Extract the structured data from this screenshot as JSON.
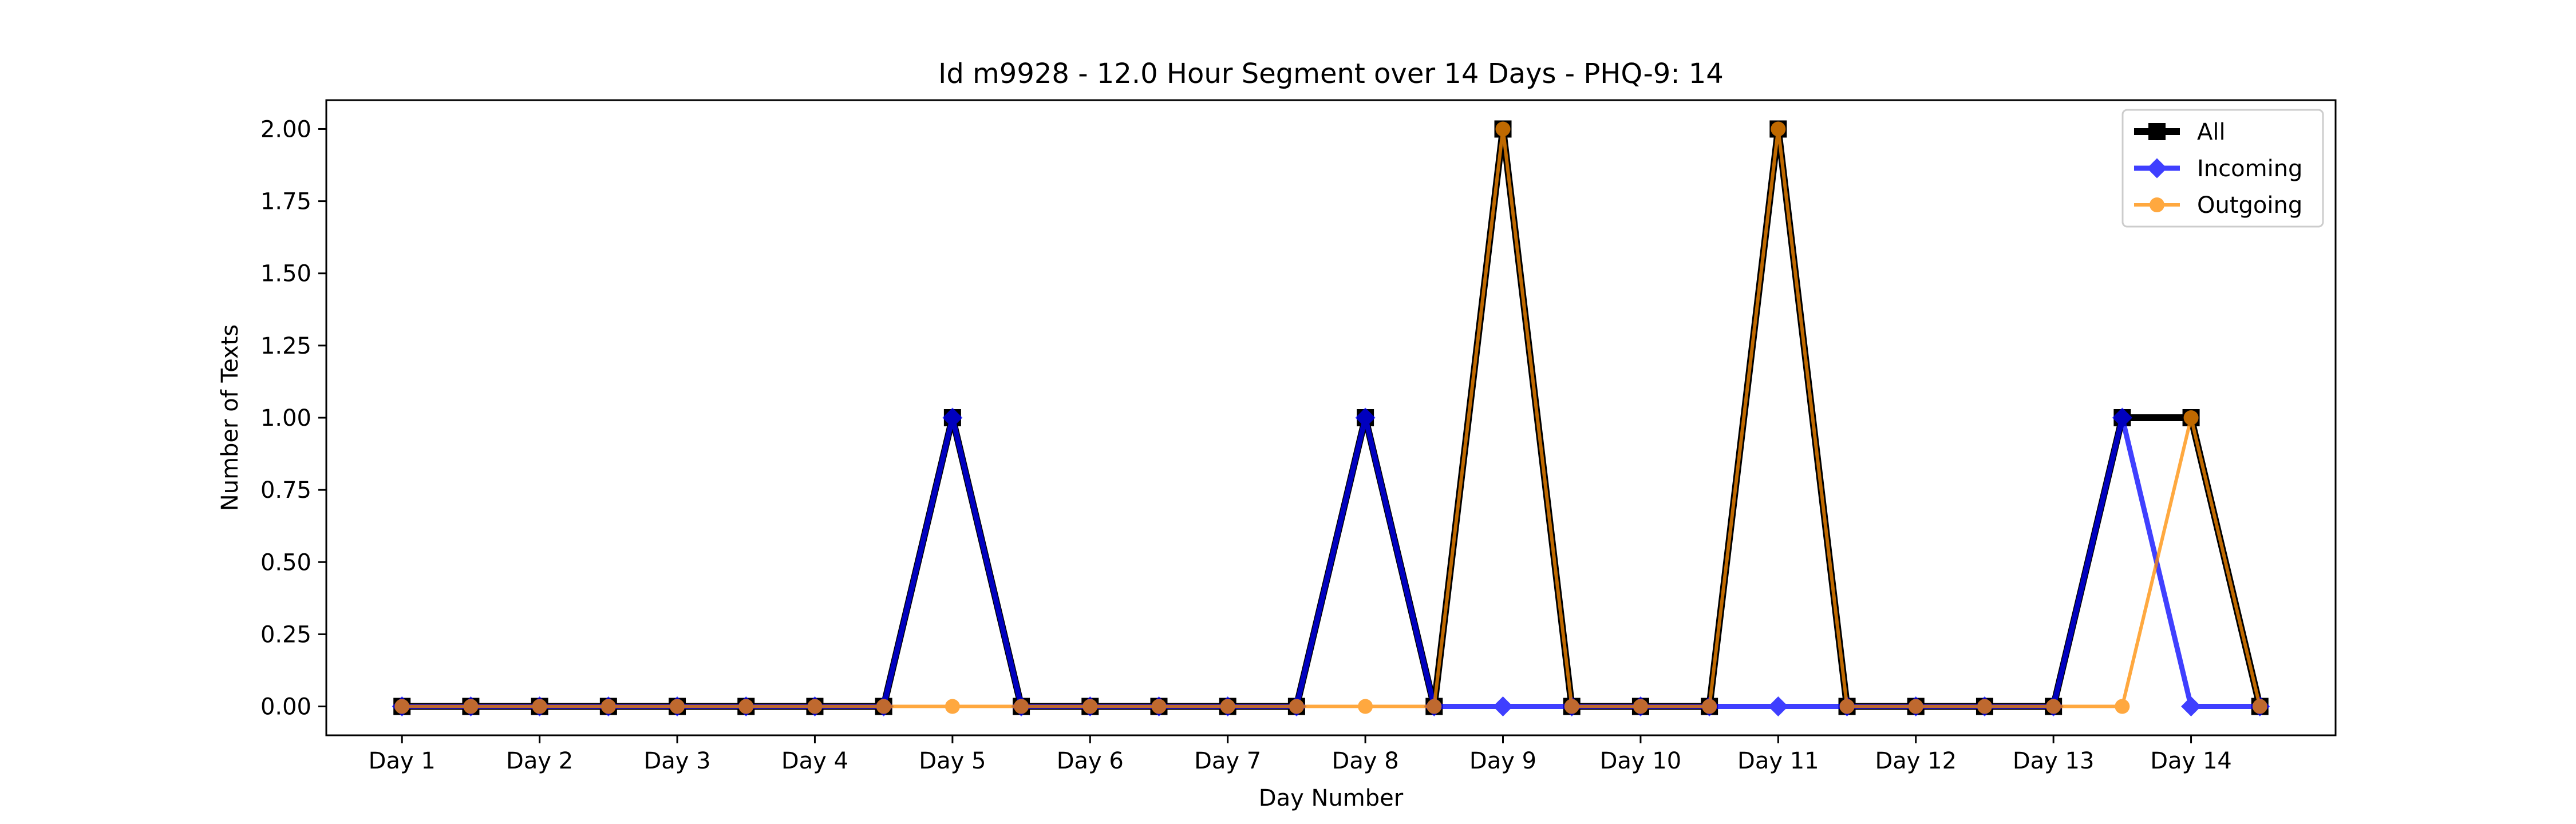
{
  "chart_data": {
    "type": "line",
    "title": "Id m9928 - 12.0 Hour Segment over 14 Days - PHQ-9: 14",
    "xlabel": "Day Number",
    "ylabel": "Number of Texts",
    "x": [
      1,
      1.5,
      2,
      2.5,
      3,
      3.5,
      4,
      4.5,
      5,
      5.5,
      6,
      6.5,
      7,
      7.5,
      8,
      8.5,
      9,
      9.5,
      10,
      10.5,
      11,
      11.5,
      12,
      12.5,
      13,
      13.5,
      14,
      14.5
    ],
    "xticks": [
      1,
      2,
      3,
      4,
      5,
      6,
      7,
      8,
      9,
      10,
      11,
      12,
      13,
      14
    ],
    "xtick_labels": [
      "Day 1",
      "Day 2",
      "Day 3",
      "Day 4",
      "Day 5",
      "Day 6",
      "Day 7",
      "Day 8",
      "Day 9",
      "Day 10",
      "Day 11",
      "Day 12",
      "Day 13",
      "Day 14"
    ],
    "xlim": [
      0.45,
      15.05
    ],
    "ylim": [
      -0.1,
      2.1
    ],
    "yticks": [
      0.0,
      0.25,
      0.5,
      0.75,
      1.0,
      1.25,
      1.5,
      1.75,
      2.0
    ],
    "ytick_labels": [
      "0.00",
      "0.25",
      "0.50",
      "0.75",
      "1.00",
      "1.25",
      "1.50",
      "1.75",
      "2.00"
    ],
    "grid": false,
    "legend_position": "top-right",
    "series": [
      {
        "name": "All",
        "color": "#000000",
        "marker": "square",
        "values": [
          0,
          0,
          0,
          0,
          0,
          0,
          0,
          0,
          1,
          0,
          0,
          0,
          0,
          0,
          1,
          0,
          2,
          0,
          0,
          0,
          2,
          0,
          0,
          0,
          0,
          1,
          1,
          0
        ]
      },
      {
        "name": "Incoming",
        "color": "#0000ff",
        "marker": "diamond",
        "values": [
          0,
          0,
          0,
          0,
          0,
          0,
          0,
          0,
          1,
          0,
          0,
          0,
          0,
          0,
          1,
          0,
          0,
          0,
          0,
          0,
          0,
          0,
          0,
          0,
          0,
          1,
          0,
          0
        ]
      },
      {
        "name": "Outgoing",
        "color": "#ff8c00",
        "marker": "circle",
        "values": [
          0,
          0,
          0,
          0,
          0,
          0,
          0,
          0,
          0,
          0,
          0,
          0,
          0,
          0,
          0,
          0,
          2,
          0,
          0,
          0,
          2,
          0,
          0,
          0,
          0,
          0,
          1,
          0
        ]
      }
    ]
  }
}
